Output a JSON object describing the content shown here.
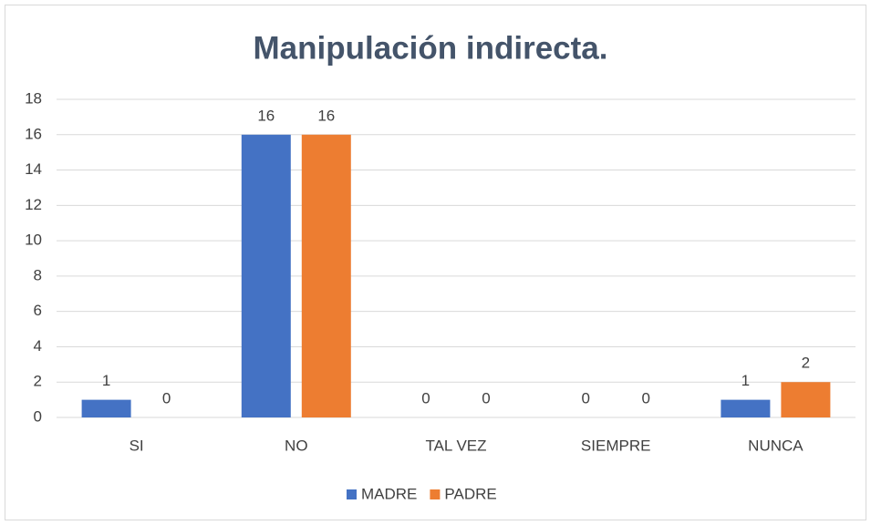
{
  "chart_data": {
    "type": "bar",
    "title": "Manipulación indirecta.",
    "categories": [
      "SI",
      "NO",
      "TAL VEZ",
      "SIEMPRE",
      "NUNCA"
    ],
    "series": [
      {
        "name": "MADRE",
        "color": "#4472c4",
        "values": [
          1,
          16,
          0,
          0,
          1
        ]
      },
      {
        "name": "PADRE",
        "color": "#ed7d31",
        "values": [
          0,
          16,
          0,
          0,
          2
        ]
      }
    ],
    "ylim": [
      0,
      18
    ],
    "yticks": [
      0,
      2,
      4,
      6,
      8,
      10,
      12,
      14,
      16,
      18
    ],
    "grid": true,
    "legend": "bottom"
  }
}
